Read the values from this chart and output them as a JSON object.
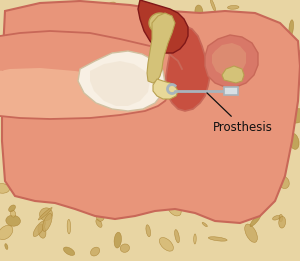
{
  "bg_color": "#e8d5a3",
  "skin_color": "#e8957a",
  "skin_dark": "#c86858",
  "skin_light": "#f0b090",
  "skin_mid": "#d87868",
  "middle_ear_color": "#c85040",
  "mastoid_dark": "#b03828",
  "ossicle_color": "#d4c278",
  "ossicle_dark": "#b8a050",
  "ossicle_light": "#e8d898",
  "tm_color": "#f5ede0",
  "tm_edge": "#d4c0a8",
  "prosthesis_color": "#a8b4bc",
  "prosthesis_light": "#d8e0e4",
  "label_text": "Prosthesis",
  "label_color": "#111111",
  "label_fontsize": 8.5,
  "fig_width": 3.0,
  "fig_height": 2.61,
  "dpi": 100
}
